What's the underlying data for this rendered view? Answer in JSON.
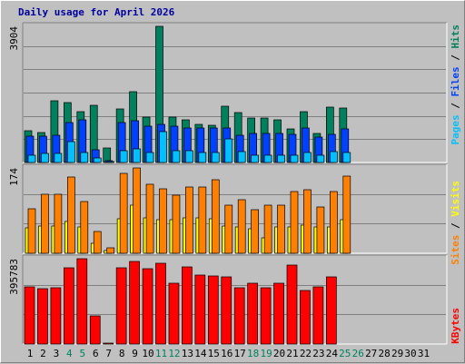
{
  "title": "Daily usage for April 2026",
  "colors": {
    "background": "#c0c0c0",
    "title": "#0000a0",
    "hits": "#00805c",
    "files": "#0040ff",
    "pages": "#00c0ff",
    "visits": "#ffff00",
    "sites": "#ff8000",
    "kbytes": "#ff0000",
    "weekday_label": "#000000",
    "weekend_label": "#00805c"
  },
  "chart_data": [
    {
      "type": "bar",
      "panel": "hits-files-pages",
      "max_label": "3904",
      "ylim": [
        0,
        3904
      ],
      "labels": [
        "Pages",
        "Files",
        "Hits"
      ],
      "categories": [
        "1",
        "2",
        "3",
        "4",
        "5",
        "6",
        "7",
        "8",
        "9",
        "10",
        "11",
        "12",
        "13",
        "14",
        "15",
        "16",
        "17",
        "18",
        "19",
        "20",
        "21",
        "22",
        "23",
        "24",
        "25",
        "26",
        "27",
        "28",
        "29",
        "30",
        "31"
      ],
      "weekend_days": [
        "4",
        "5",
        "11",
        "12",
        "18",
        "19",
        "25",
        "26"
      ],
      "series": [
        {
          "name": "Hits",
          "values": [
            900,
            850,
            1780,
            1720,
            1450,
            1650,
            420,
            1530,
            2030,
            1300,
            3904,
            1300,
            1230,
            1100,
            1080,
            1620,
            1440,
            1280,
            1270,
            1230,
            950,
            1470,
            820,
            1590,
            1560,
            0,
            0,
            0,
            0,
            0,
            0
          ]
        },
        {
          "name": "Files",
          "values": [
            760,
            760,
            770,
            1150,
            1220,
            360,
            50,
            1150,
            1200,
            1030,
            1100,
            1030,
            980,
            980,
            990,
            1000,
            790,
            820,
            820,
            830,
            800,
            1000,
            740,
            800,
            960,
            0,
            0,
            0,
            0,
            0,
            0
          ]
        },
        {
          "name": "Pages",
          "values": [
            210,
            250,
            260,
            600,
            290,
            140,
            30,
            330,
            380,
            280,
            890,
            350,
            330,
            280,
            280,
            680,
            300,
            210,
            210,
            210,
            210,
            280,
            210,
            300,
            290,
            0,
            0,
            0,
            0,
            0,
            0
          ]
        }
      ]
    },
    {
      "type": "bar",
      "panel": "visits-sites",
      "max_label": "174",
      "ylim": [
        0,
        174
      ],
      "labels": [
        "Sites",
        "Visits"
      ],
      "categories": [
        "1",
        "2",
        "3",
        "4",
        "5",
        "6",
        "7",
        "8",
        "9",
        "10",
        "11",
        "12",
        "13",
        "14",
        "15",
        "16",
        "17",
        "18",
        "19",
        "20",
        "21",
        "22",
        "23",
        "24",
        "25",
        "26",
        "27",
        "28",
        "29",
        "30",
        "31"
      ],
      "series": [
        {
          "name": "Sites",
          "values": [
            90,
            120,
            120,
            155,
            105,
            45,
            12,
            163,
            174,
            140,
            132,
            118,
            135,
            135,
            150,
            98,
            109,
            88,
            98,
            98,
            125,
            129,
            95,
            125,
            157,
            0,
            0,
            0,
            0,
            0,
            0
          ]
        },
        {
          "name": "Visits",
          "values": [
            52,
            55,
            56,
            65,
            53,
            21,
            6,
            71,
            98,
            72,
            68,
            69,
            72,
            72,
            71,
            55,
            54,
            50,
            32,
            53,
            54,
            57,
            53,
            53,
            69,
            0,
            0,
            0,
            0,
            0,
            0
          ]
        }
      ]
    },
    {
      "type": "bar",
      "panel": "kbytes",
      "max_label": "395783",
      "ylim": [
        0,
        395783
      ],
      "labels": [
        "KBytes"
      ],
      "categories": [
        "1",
        "2",
        "3",
        "4",
        "5",
        "6",
        "7",
        "8",
        "9",
        "10",
        "11",
        "12",
        "13",
        "14",
        "15",
        "16",
        "17",
        "18",
        "19",
        "20",
        "21",
        "22",
        "23",
        "24",
        "25",
        "26",
        "27",
        "28",
        "29",
        "30",
        "31"
      ],
      "series": [
        {
          "name": "KBytes",
          "values": [
            265000,
            257000,
            260000,
            355000,
            395783,
            131000,
            5500,
            355000,
            382000,
            350000,
            373000,
            280000,
            357000,
            322000,
            315000,
            313000,
            260000,
            282000,
            262000,
            280000,
            365000,
            250000,
            265000,
            313000,
            0,
            0,
            0,
            0,
            0,
            0,
            0
          ]
        }
      ]
    }
  ]
}
